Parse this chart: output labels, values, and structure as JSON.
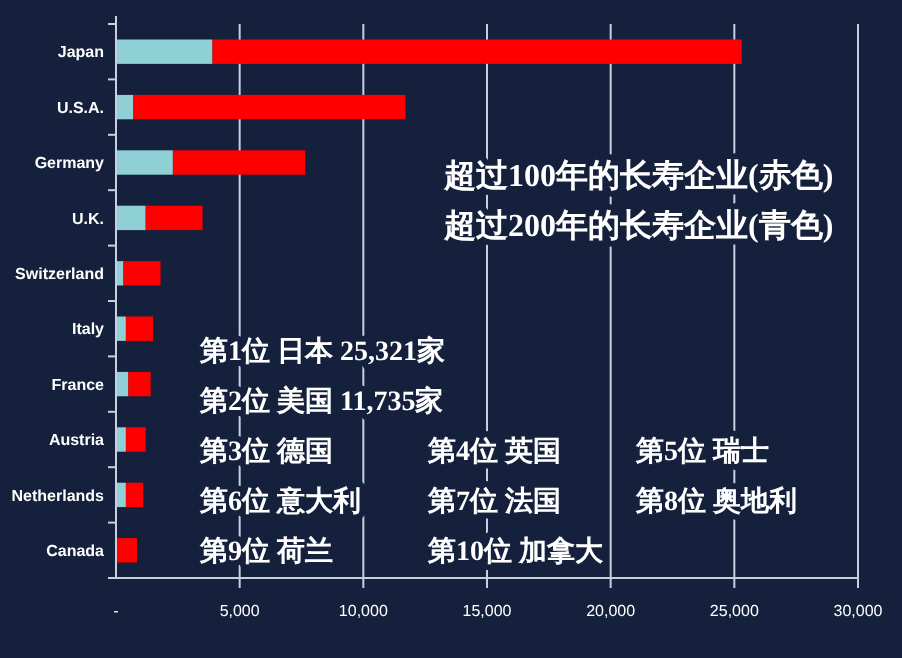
{
  "chart_data": {
    "type": "bar",
    "orientation": "horizontal",
    "stacked": true,
    "categories": [
      "Japan",
      "U.S.A.",
      "Germany",
      "U.K.",
      "Switzerland",
      "Italy",
      "France",
      "Austria",
      "Netherlands",
      "Canada"
    ],
    "series": [
      {
        "color": "#8fcfd6",
        "values": [
          3900,
          700,
          2300,
          1200,
          300,
          400,
          500,
          400,
          400,
          0
        ]
      },
      {
        "color": "#ff0000",
        "values": [
          21400,
          11000,
          5350,
          2300,
          1500,
          1100,
          900,
          800,
          700,
          850
        ]
      }
    ],
    "xlim": [
      0,
      30000
    ],
    "xticks": [
      {
        "value": 0,
        "label": "-"
      },
      {
        "value": 5000,
        "label": "5,000"
      },
      {
        "value": 10000,
        "label": "10,000"
      },
      {
        "value": 15000,
        "label": "15,000"
      },
      {
        "value": 20000,
        "label": "20,000"
      },
      {
        "value": 25000,
        "label": "25,000"
      },
      {
        "value": 30000,
        "label": "30,000"
      }
    ],
    "grid": "x",
    "annotations": [
      "超过100年的长寿企业(赤色)",
      "超过200年的长寿企业(青色)",
      "第1位 日本 25,321家",
      "第2位 美国 11,735家",
      "第3位 德国",
      "第4位 英国",
      "第5位 瑞士",
      "第6位 意大利",
      "第7位 法国",
      "第8位 奥地利",
      "第9位 荷兰",
      "第10位 加拿大"
    ]
  }
}
